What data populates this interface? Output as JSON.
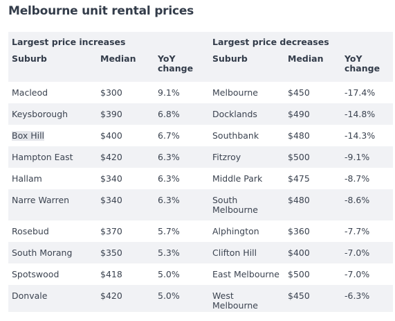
{
  "title": "Melbourne unit rental prices",
  "sections": {
    "increases": "Largest price increases",
    "decreases": "Largest price decreases"
  },
  "columns": {
    "suburb": "Suburb",
    "median": "Median",
    "yoy_line1": "YoY",
    "yoy_line2": "change"
  },
  "rows": [
    {
      "inc_suburb": "Macleod",
      "inc_median": "$300",
      "inc_change": "9.1%",
      "dec_suburb_1": "Melbourne",
      "dec_suburb_2": "",
      "dec_median": "$450",
      "dec_change": "-17.4%"
    },
    {
      "inc_suburb": "Keysborough",
      "inc_median": "$390",
      "inc_change": "6.8%",
      "dec_suburb_1": "Docklands",
      "dec_suburb_2": "",
      "dec_median": "$490",
      "dec_change": "-14.8%"
    },
    {
      "inc_suburb": "Box Hill",
      "inc_median": "$400",
      "inc_change": "6.7%",
      "dec_suburb_1": "Southbank",
      "dec_suburb_2": "",
      "dec_median": "$480",
      "dec_change": "-14.3%"
    },
    {
      "inc_suburb": "Hampton East",
      "inc_median": "$420",
      "inc_change": "6.3%",
      "dec_suburb_1": "Fitzroy",
      "dec_suburb_2": "",
      "dec_median": "$500",
      "dec_change": "-9.1%"
    },
    {
      "inc_suburb": "Hallam",
      "inc_median": "$340",
      "inc_change": "6.3%",
      "dec_suburb_1": "Middle Park",
      "dec_suburb_2": "",
      "dec_median": "$475",
      "dec_change": "-8.7%"
    },
    {
      "inc_suburb": "Narre Warren",
      "inc_median": "$340",
      "inc_change": "6.3%",
      "dec_suburb_1": "South",
      "dec_suburb_2": "Melbourne",
      "dec_median": "$480",
      "dec_change": "-8.6%"
    },
    {
      "inc_suburb": "Rosebud",
      "inc_median": "$370",
      "inc_change": "5.7%",
      "dec_suburb_1": "Alphington",
      "dec_suburb_2": "",
      "dec_median": "$360",
      "dec_change": "-7.7%"
    },
    {
      "inc_suburb": "South Morang",
      "inc_median": "$350",
      "inc_change": "5.3%",
      "dec_suburb_1": "Clifton Hill",
      "dec_suburb_2": "",
      "dec_median": "$400",
      "dec_change": "-7.0%"
    },
    {
      "inc_suburb": "Spotswood",
      "inc_median": "$418",
      "inc_change": "5.0%",
      "dec_suburb_1": "East Melbourne",
      "dec_suburb_2": "",
      "dec_median": "$500",
      "dec_change": "-7.0%"
    },
    {
      "inc_suburb": "Donvale",
      "inc_median": "$420",
      "inc_change": "5.0%",
      "dec_suburb_1": "West",
      "dec_suburb_2": "Melbourne",
      "dec_median": "$450",
      "dec_change": "-6.3%"
    }
  ]
}
